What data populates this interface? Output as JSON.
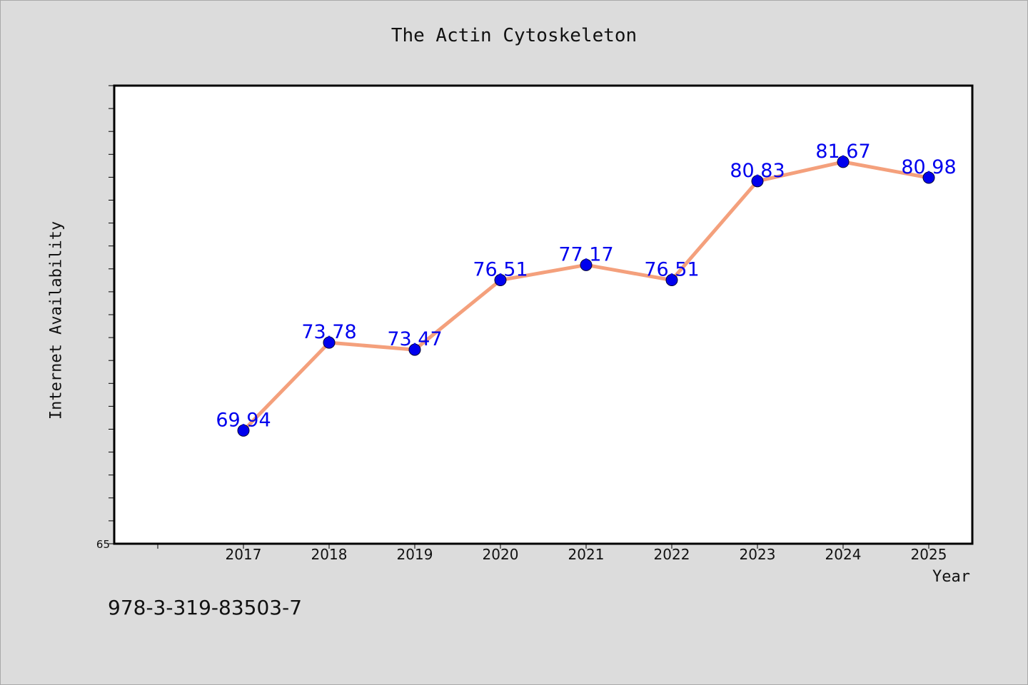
{
  "chart_data": {
    "type": "line",
    "title": "The Actin Cytoskeleton",
    "xlabel": "Year",
    "ylabel": "Internet Availability",
    "x": [
      "2017",
      "2018",
      "2019",
      "2020",
      "2021",
      "2022",
      "2023",
      "2024",
      "2025"
    ],
    "series": [
      {
        "values": [
          69.94,
          73.78,
          73.47,
          76.51,
          77.17,
          76.51,
          80.83,
          81.67,
          80.98
        ],
        "data_labels": [
          "69.94",
          "73.78",
          "73.47",
          "76.51",
          "77.17",
          "76.51",
          "80.83",
          "81.67",
          "80.98"
        ],
        "line_color": "#f4a07c",
        "marker_color": "#0000ee",
        "label_color": "#0000ee"
      }
    ],
    "ylim": [
      65,
      85
    ],
    "ytick_labels": [
      "65"
    ],
    "grid": false,
    "legend": "none"
  },
  "footnote": "978-3-319-83503-7"
}
